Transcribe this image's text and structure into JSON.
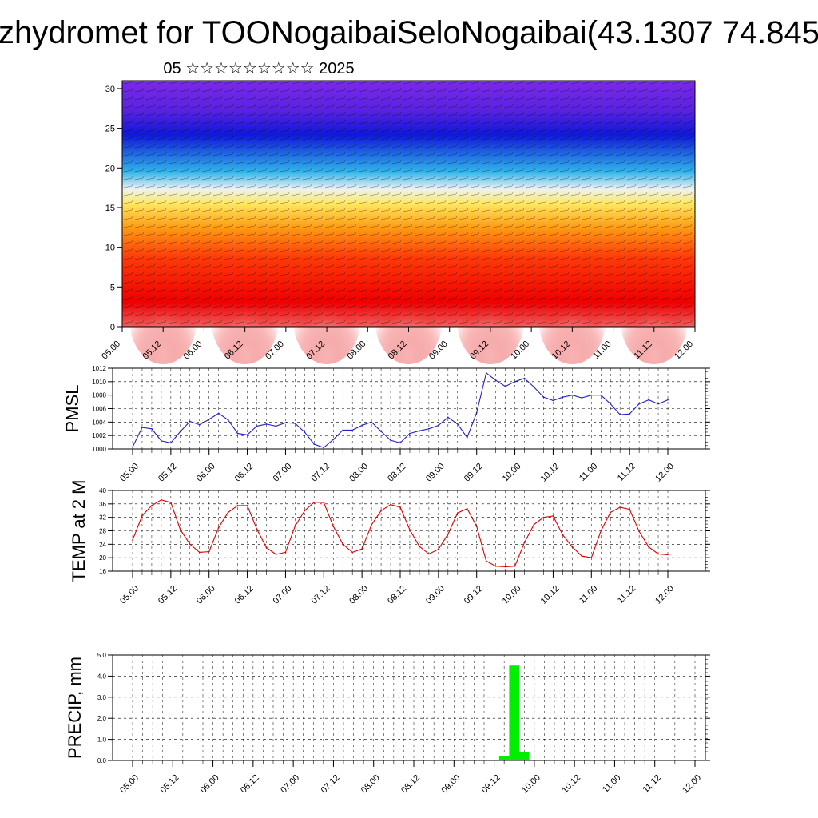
{
  "header": {
    "title": "zhydromet for TOONogaibaiSeloNogaibai(43.1307 74.845",
    "subtitle": "05 ☆☆☆☆☆☆☆☆☆ 2025"
  },
  "chart_data": [
    {
      "type": "heatmap",
      "title": "",
      "ylim": [
        0,
        31
      ],
      "yticks": [
        0,
        5,
        10,
        15,
        20,
        25,
        30
      ],
      "x_tick_labels": [
        "05.00",
        "05.12",
        "06.00",
        "06.12",
        "07.00",
        "07.12",
        "08.00",
        "08.12",
        "09.00",
        "09.12",
        "10.00",
        "10.12",
        "11.00",
        "11.12",
        "12.00"
      ],
      "colormap": [
        "#6a1fd6",
        "#1f2ce0",
        "#1aa6e6",
        "#e8eef4",
        "#ffe86a",
        "#ffa21a",
        "#ff4a0a",
        "#ee0000",
        "#e06a6a"
      ],
      "overlay": "wind barbs and streamlines"
    },
    {
      "type": "line",
      "ylabel": "PMSL",
      "ylim": [
        1000,
        1012
      ],
      "yticks": [
        1000,
        1002,
        1004,
        1006,
        1008,
        1010,
        1012
      ],
      "x_tick_labels": [
        "05.00",
        "05.12",
        "06.00",
        "06.12",
        "07.00",
        "07.12",
        "08.00",
        "08.12",
        "09.00",
        "09.12",
        "10.00",
        "10.12",
        "11.00",
        "11.12",
        "12.00"
      ],
      "color": "#2222cc",
      "values": [
        1000.3,
        1003.2,
        1003.0,
        1001.2,
        1000.9,
        1002.6,
        1004.1,
        1003.6,
        1004.4,
        1005.3,
        1004.3,
        1002.3,
        1002.1,
        1003.4,
        1003.7,
        1003.4,
        1003.9,
        1003.8,
        1002.5,
        1000.7,
        1000.2,
        1001.4,
        1002.8,
        1002.8,
        1003.5,
        1004.0,
        1002.6,
        1001.3,
        1000.9,
        1002.3,
        1002.7,
        1003.0,
        1003.5,
        1004.7,
        1003.7,
        1001.7,
        1005.4,
        1011.3,
        1010.2,
        1009.3,
        1010.0,
        1010.5,
        1009.2,
        1007.7,
        1007.2,
        1007.7,
        1008.0,
        1007.6,
        1008.0,
        1008.0,
        1006.7,
        1005.1,
        1005.2,
        1006.7,
        1007.3,
        1006.7,
        1007.3
      ]
    },
    {
      "type": "line",
      "ylabel": "TEMP at 2 M",
      "ylim": [
        16,
        40
      ],
      "yticks": [
        16,
        20,
        24,
        28,
        32,
        36,
        40
      ],
      "x_tick_labels": [
        "05.00",
        "05.12",
        "06.00",
        "06.12",
        "07.00",
        "07.12",
        "08.00",
        "08.12",
        "09.00",
        "09.12",
        "10.00",
        "10.12",
        "11.00",
        "11.12",
        "12.00"
      ],
      "color": "#dd0000",
      "values": [
        25.3,
        32.5,
        35.5,
        37.2,
        36.4,
        28.3,
        24.0,
        21.6,
        21.8,
        29.0,
        33.5,
        35.5,
        35.5,
        28.5,
        23.0,
        21.0,
        21.6,
        29.4,
        34.0,
        36.5,
        36.4,
        29.3,
        24.0,
        21.6,
        22.6,
        29.8,
        34.0,
        35.8,
        35.0,
        28.3,
        23.4,
        21.1,
        22.5,
        27.0,
        33.3,
        34.6,
        29.3,
        19.0,
        17.5,
        17.3,
        17.5,
        24.5,
        29.9,
        32.0,
        32.4,
        26.8,
        23.2,
        20.5,
        20.0,
        28.0,
        33.5,
        35.0,
        34.4,
        27.8,
        23.2,
        21.1,
        20.9
      ]
    },
    {
      "type": "bar",
      "ylabel": "PRECIP, mm",
      "ylim": [
        0,
        5
      ],
      "yticks": [
        "0.0",
        "1.0",
        "2.0",
        "3.0",
        "4.0",
        "5.0"
      ],
      "x_tick_labels": [
        "05.00",
        "05.12",
        "06.00",
        "06.12",
        "07.00",
        "07.12",
        "08.00",
        "08.12",
        "09.00",
        "09.12",
        "10.00",
        "10.12",
        "11.00",
        "11.12",
        "12.00"
      ],
      "color": "#00ee00",
      "values": [
        0,
        0,
        0,
        0,
        0,
        0,
        0,
        0,
        0,
        0,
        0,
        0,
        0,
        0,
        0,
        0,
        0,
        0,
        0,
        0,
        0,
        0,
        0,
        0,
        0,
        0,
        0,
        0,
        0,
        0,
        0,
        0,
        0,
        0,
        0,
        0,
        0,
        0.2,
        4.5,
        0.4,
        0,
        0,
        0,
        0,
        0,
        0,
        0,
        0,
        0,
        0,
        0,
        0,
        0,
        0,
        0,
        0,
        0
      ]
    }
  ]
}
